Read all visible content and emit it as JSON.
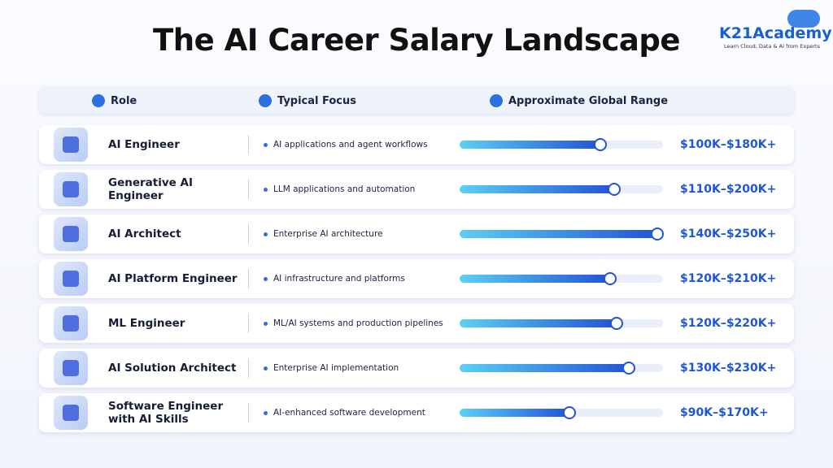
{
  "header": {
    "title": "The AI Career Salary Landscape",
    "brand": "K21Academy",
    "tagline": "Learn Cloud, Data & AI from Experts"
  },
  "columns": [
    "Role",
    "Typical Focus",
    "Approximate Global Range"
  ],
  "bar_range": [
    0,
    100
  ],
  "rows": [
    {
      "role": "AI Engineer",
      "focus": "AI applications and agent workflows",
      "range": "$100K–$180K+",
      "bar": 69
    },
    {
      "role": "Generative AI Engineer",
      "focus": "LLM applications and automation",
      "range": "$110K–$200K+",
      "bar": 76
    },
    {
      "role": "AI Architect",
      "focus": "Enterprise AI architecture",
      "range": "$140K–$250K+",
      "bar": 97
    },
    {
      "role": "AI Platform Engineer",
      "focus": "AI infrastructure and platforms",
      "range": "$120K–$210K+",
      "bar": 74
    },
    {
      "role": "ML Engineer",
      "focus": "ML/AI systems and production pipelines",
      "range": "$120K–$220K+",
      "bar": 77
    },
    {
      "role": "AI Solution Architect",
      "focus": "Enterprise AI implementation",
      "range": "$130K–$230K+",
      "bar": 83
    },
    {
      "role": "Software Engineer with AI Skills",
      "focus": "AI-enhanced software development",
      "range": "$90K–$170K+",
      "bar": 54
    }
  ]
}
